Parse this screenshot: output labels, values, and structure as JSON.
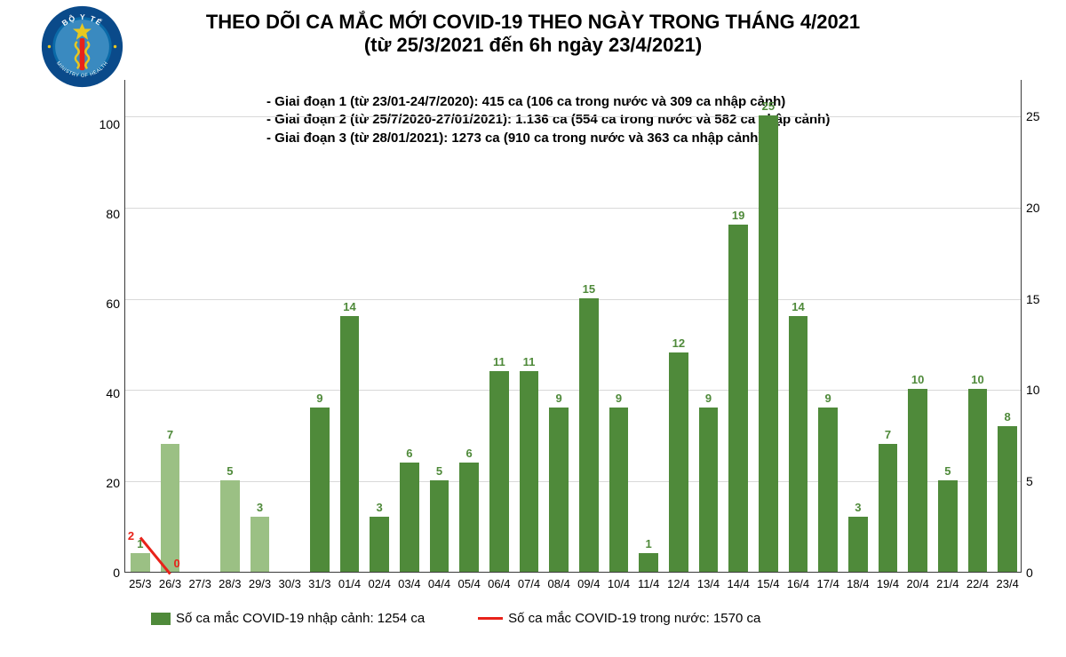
{
  "header": {
    "title1": "THEO DÕI CA MẮC MỚI COVID-19 THEO NGÀY TRONG THÁNG 4/2021",
    "title2": "(từ 25/3/2021 đến 6h ngày 23/4/2021)",
    "title_fontsize": 22,
    "title_color": "#000000"
  },
  "annotation": {
    "line1": "- Giai đoạn 1 (từ 23/01-24/7/2020): 415 ca (106 ca trong nước và 309 ca nhập cảnh)",
    "line2": "- Giai đoạn 2 (từ 25/7/2020-27/01/2021): 1.136 ca (554 ca trong nước và 582 ca nhập cảnh)",
    "line3": "- Giai đoạn 3 (từ 28/01/2021): 1273 ca (910 ca trong nước và 363 ca nhập cảnh)"
  },
  "chart": {
    "type": "bar",
    "background_color": "#ffffff",
    "grid_color": "#d9d9d9",
    "axis_color": "#3b3b3b",
    "bar_width_ratio": 0.65,
    "left_axis": {
      "ylim": [
        0,
        110
      ],
      "ticks": [
        0,
        20,
        40,
        60,
        80,
        100
      ],
      "fontsize": 14
    },
    "right_axis": {
      "ylim": [
        0,
        27
      ],
      "ticks": [
        0,
        5,
        10,
        15,
        20,
        25
      ],
      "fontsize": 14
    },
    "categories": [
      "25/3",
      "26/3",
      "27/3",
      "28/3",
      "29/3",
      "30/3",
      "31/3",
      "01/4",
      "02/4",
      "03/4",
      "04/4",
      "05/4",
      "06/4",
      "07/4",
      "08/4",
      "09/4",
      "10/4",
      "11/4",
      "12/4",
      "13/4",
      "14/4",
      "15/4",
      "16/4",
      "17/4",
      "18/4",
      "19/4",
      "20/4",
      "21/4",
      "22/4",
      "23/4"
    ],
    "bars": {
      "values": [
        1,
        7,
        null,
        5,
        3,
        null,
        9,
        14,
        3,
        6,
        5,
        6,
        11,
        11,
        9,
        15,
        9,
        1,
        12,
        9,
        19,
        25,
        14,
        9,
        3,
        7,
        10,
        5,
        10,
        8
      ],
      "color_light": "#9bc084",
      "color_dark": "#4f8a3a",
      "light_count": 6,
      "value_label_color": "#4f8a3a",
      "value_label_fontsize": 13
    },
    "line": {
      "points": [
        2,
        0
      ],
      "color": "#e8231a",
      "width": 3,
      "zero_label": "0",
      "start_label": "2"
    }
  },
  "legend": {
    "item1": {
      "label": "Số ca mắc COVID-19 nhập cảnh: 1254 ca",
      "color": "#4f8a3a",
      "type": "bar"
    },
    "item2": {
      "label": "Số ca mắc COVID-19 trong nước: 1570 ca",
      "color": "#e8231a",
      "type": "line"
    }
  },
  "logo": {
    "outer_text_top": "BỘ Y TẾ",
    "outer_text_bottom": "MINISTRY OF HEALTH",
    "ring_color": "#0a4a8a",
    "inner_color": "#0a6aa8"
  }
}
